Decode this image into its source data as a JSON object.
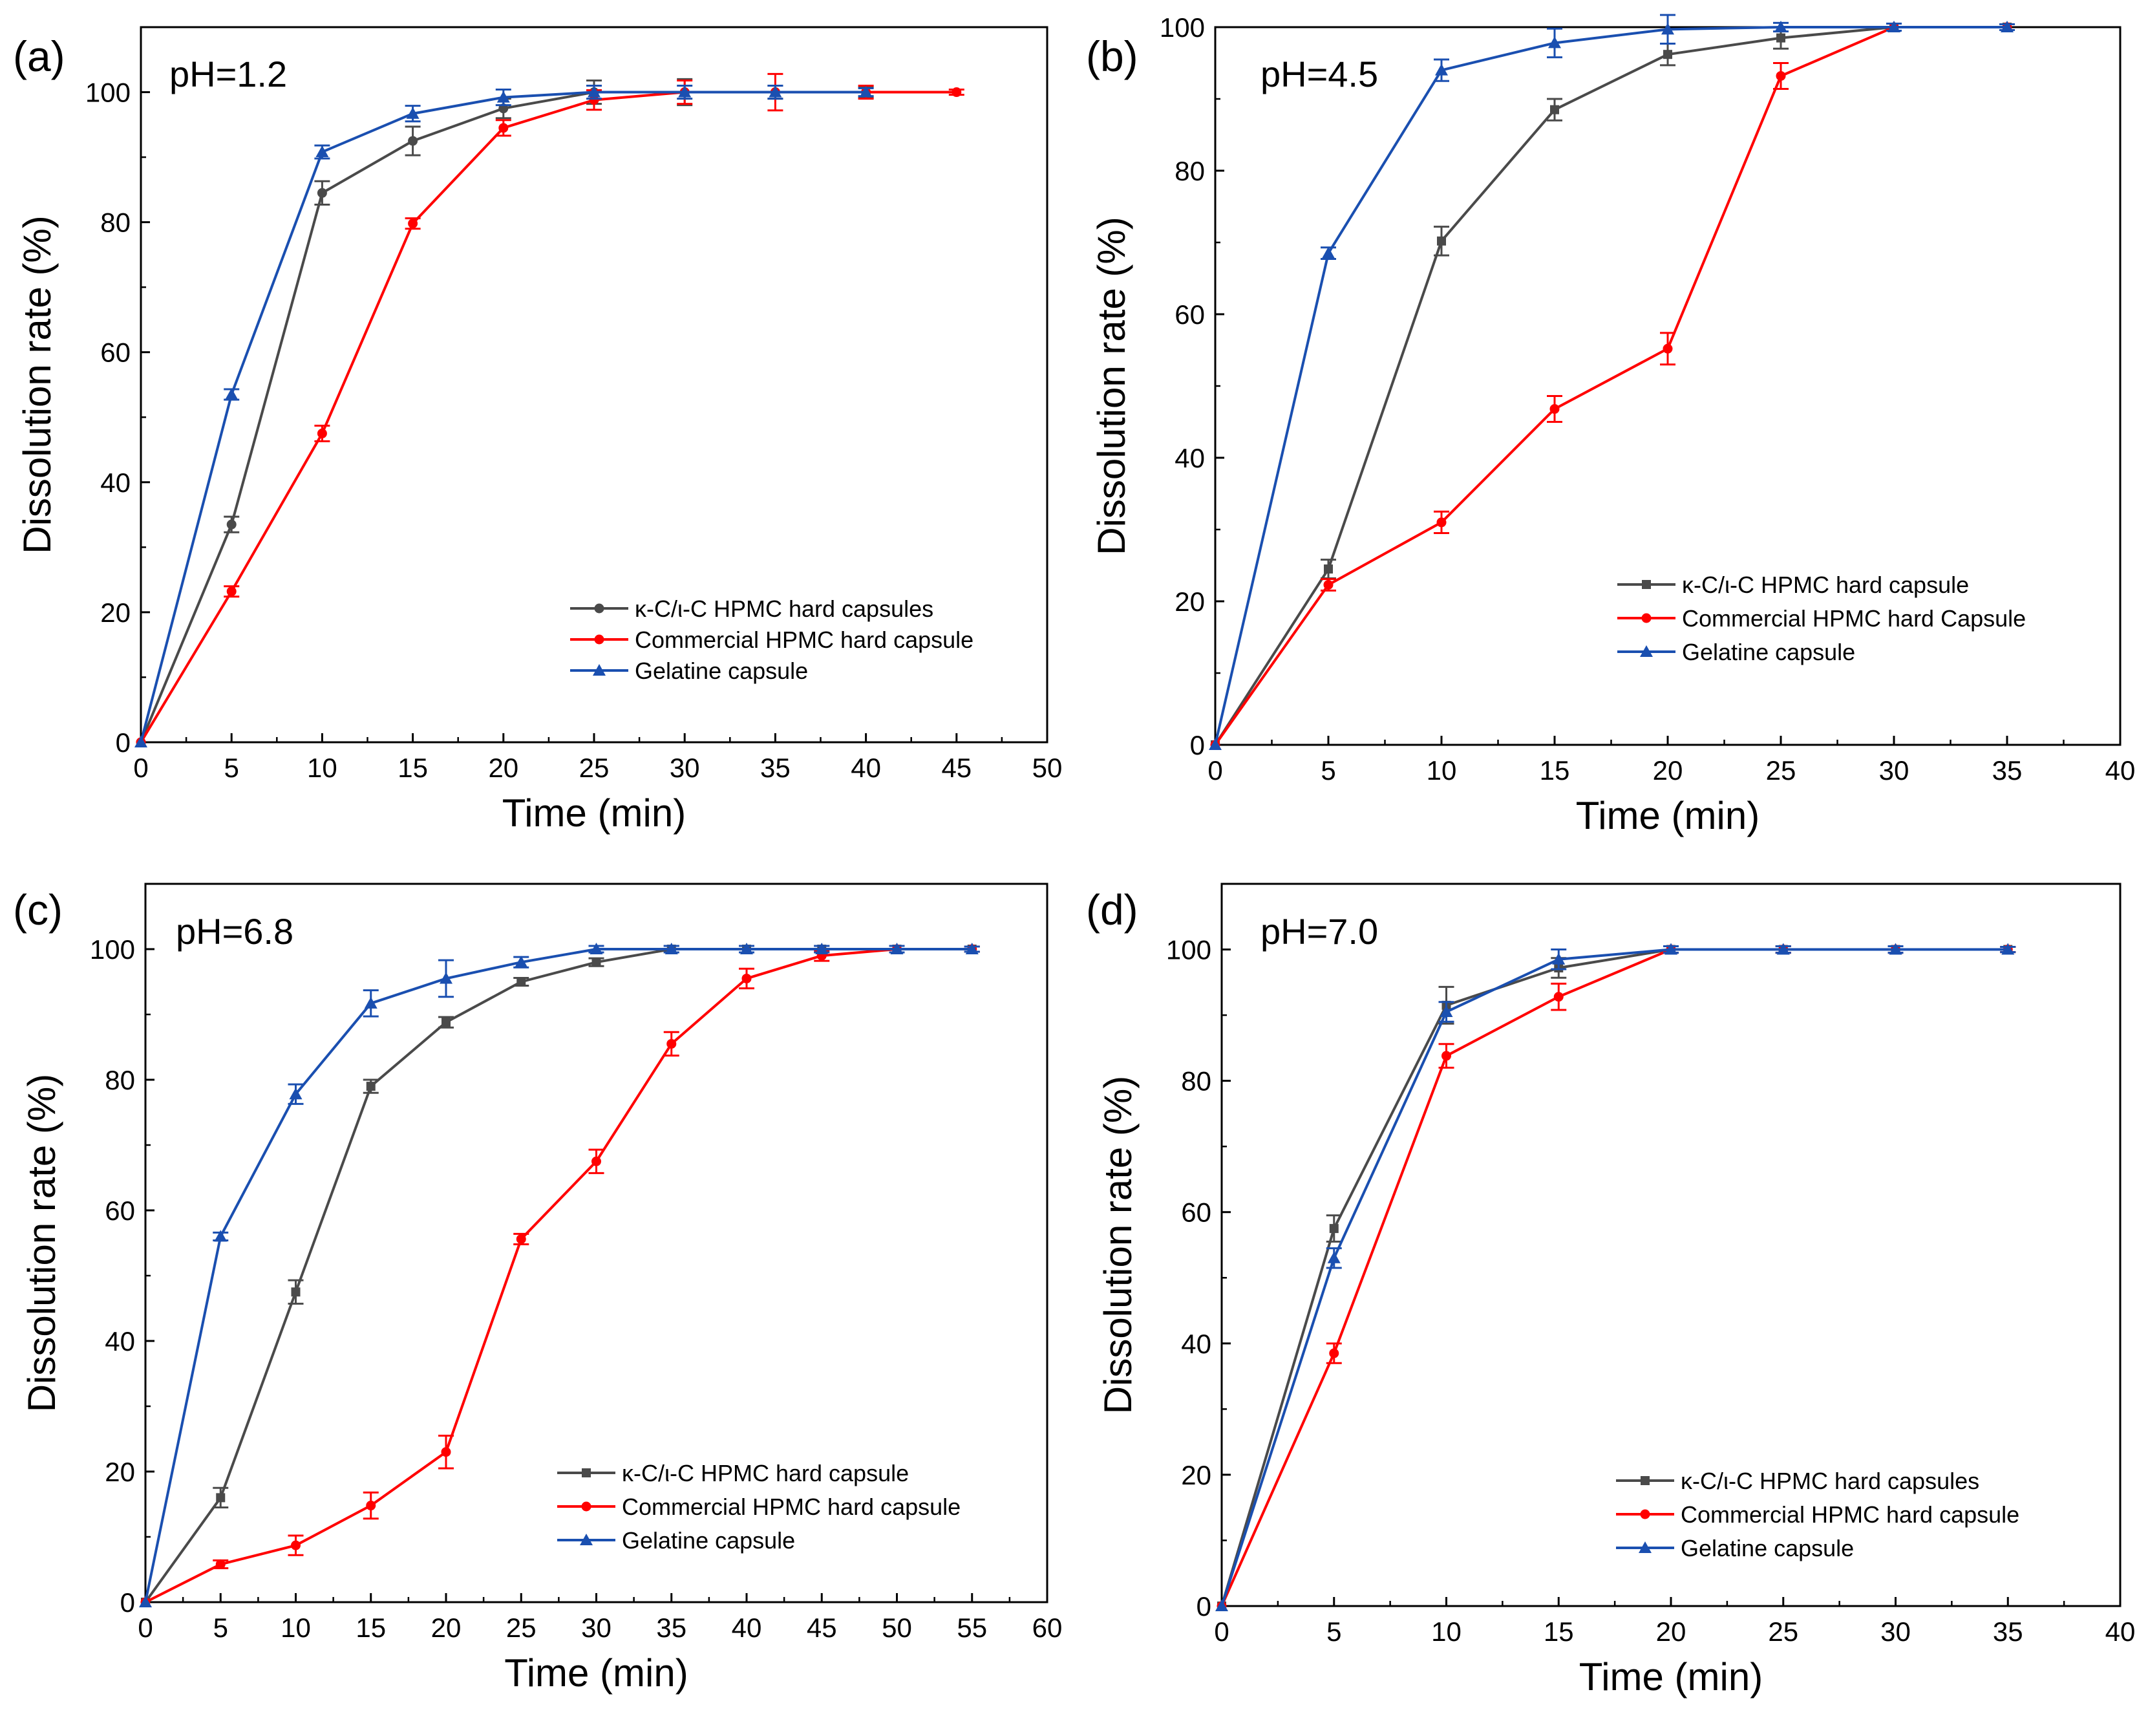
{
  "colors": {
    "kappa": "#4a4a4a",
    "commercial": "#ff0000",
    "gelatine": "#1a4fb0",
    "axis": "#000000"
  },
  "chart_data": [
    {
      "type": "line",
      "panel_label": "(a)",
      "title": "pH=1.2",
      "xlabel": "Time (min)",
      "ylabel": "Dissolution rate (%)",
      "xlim": [
        0,
        50
      ],
      "ylim": [
        0,
        110
      ],
      "xticks": [
        0,
        5,
        10,
        15,
        20,
        25,
        30,
        35,
        40,
        45,
        50
      ],
      "yticks": [
        0,
        20,
        40,
        60,
        80,
        100
      ],
      "legend_position": "lower-right",
      "series": [
        {
          "key": "kappa",
          "name": "κ-C/ι-C HPMC hard capsules",
          "marker": "circle",
          "x": [
            0,
            5,
            10,
            15,
            20,
            25,
            30,
            35,
            40
          ],
          "y": [
            0,
            33.5,
            84.5,
            92.5,
            97.5,
            100,
            100,
            100,
            100
          ],
          "err": [
            0,
            1.2,
            1.8,
            2.2,
            1.5,
            1.8,
            2.0,
            1.0,
            0.8
          ]
        },
        {
          "key": "commercial",
          "name": "Commercial HPMC hard capsule",
          "marker": "circle",
          "x": [
            0,
            5,
            10,
            15,
            20,
            25,
            30,
            35,
            40,
            45
          ],
          "y": [
            0,
            23.2,
            47.5,
            79.8,
            94.5,
            98.8,
            100,
            100,
            100,
            100
          ],
          "err": [
            0,
            0.8,
            1.2,
            0.8,
            1.2,
            1.5,
            1.8,
            2.8,
            1.0,
            0.4
          ]
        },
        {
          "key": "gelatine",
          "name": "Gelatine capsule",
          "marker": "triangle",
          "x": [
            0,
            5,
            10,
            15,
            20,
            25,
            30,
            35,
            40
          ],
          "y": [
            0,
            53.5,
            90.8,
            96.7,
            99.2,
            100,
            100,
            100,
            100
          ],
          "err": [
            0,
            0.8,
            1.0,
            1.2,
            1.2,
            1.0,
            1.0,
            1.0,
            0.6
          ]
        }
      ]
    },
    {
      "type": "line",
      "panel_label": "(b)",
      "title": "pH=4.5",
      "xlabel": "Time (min)",
      "ylabel": "Dissolution rate (%)",
      "xlim": [
        0,
        40
      ],
      "ylim": [
        0,
        100
      ],
      "xticks": [
        0,
        5,
        10,
        15,
        20,
        25,
        30,
        35,
        40
      ],
      "yticks": [
        0,
        20,
        40,
        60,
        80,
        100
      ],
      "legend_position": "lower-right",
      "series": [
        {
          "key": "kappa",
          "name": "κ-C/ι-C HPMC hard capsule",
          "marker": "square",
          "x": [
            0,
            5,
            10,
            15,
            20,
            25,
            30,
            35
          ],
          "y": [
            0,
            24.5,
            70.2,
            88.5,
            96.2,
            98.5,
            100,
            100
          ],
          "err": [
            0,
            1.3,
            2.0,
            1.5,
            1.5,
            1.5,
            0.5,
            0.4
          ]
        },
        {
          "key": "commercial",
          "name": "Commercial HPMC hard Capsule",
          "marker": "circle",
          "x": [
            0,
            5,
            10,
            15,
            20,
            25,
            30,
            35
          ],
          "y": [
            0,
            22.3,
            31.0,
            46.8,
            55.2,
            93.2,
            100,
            100
          ],
          "err": [
            0,
            0.8,
            1.5,
            1.8,
            2.2,
            1.8,
            0.5,
            0.4
          ]
        },
        {
          "key": "gelatine",
          "name": "Gelatine capsule",
          "marker": "triangle",
          "x": [
            0,
            5,
            10,
            15,
            20,
            25,
            30,
            35
          ],
          "y": [
            0,
            68.5,
            94.0,
            97.8,
            99.7,
            100,
            100,
            100
          ],
          "err": [
            0,
            0.8,
            1.5,
            2.0,
            2.0,
            0.6,
            0.5,
            0.4
          ]
        }
      ]
    },
    {
      "type": "line",
      "panel_label": "(c)",
      "title": "pH=6.8",
      "xlabel": "Time (min)",
      "ylabel": "Dissolution rate (%)",
      "xlim": [
        0,
        60
      ],
      "ylim": [
        0,
        110
      ],
      "xticks": [
        0,
        5,
        10,
        15,
        20,
        25,
        30,
        35,
        40,
        45,
        50,
        55,
        60
      ],
      "yticks": [
        0,
        20,
        40,
        60,
        80,
        100
      ],
      "legend_position": "lower-right",
      "series": [
        {
          "key": "kappa",
          "name": "κ-C/ι-C HPMC hard capsule",
          "marker": "square",
          "x": [
            0,
            5,
            10,
            15,
            20,
            25,
            30,
            35,
            40,
            45,
            50,
            55
          ],
          "y": [
            0,
            16.0,
            47.5,
            79.0,
            88.8,
            95.0,
            98.0,
            100,
            100,
            100,
            100,
            100
          ],
          "err": [
            0,
            1.5,
            1.8,
            1.0,
            0.8,
            0.6,
            0.6,
            0.5,
            0.5,
            0.5,
            0.5,
            0.4
          ]
        },
        {
          "key": "commercial",
          "name": "Commercial HPMC hard capsule",
          "marker": "circle",
          "x": [
            0,
            5,
            10,
            15,
            20,
            25,
            30,
            35,
            40,
            45,
            50,
            55
          ],
          "y": [
            0,
            5.8,
            8.7,
            14.8,
            23.0,
            55.6,
            67.5,
            85.5,
            95.5,
            99.0,
            100,
            100
          ],
          "err": [
            0,
            0.6,
            1.5,
            2.0,
            2.5,
            0.8,
            1.8,
            1.8,
            1.5,
            0.8,
            0.5,
            0.4
          ]
        },
        {
          "key": "gelatine",
          "name": "Gelatine capsule",
          "marker": "triangle",
          "x": [
            0,
            5,
            10,
            15,
            20,
            25,
            30,
            35,
            40,
            45,
            50,
            55
          ],
          "y": [
            0,
            56.0,
            77.8,
            91.7,
            95.5,
            98.0,
            100,
            100,
            100,
            100,
            100,
            100
          ],
          "err": [
            0,
            0.6,
            1.5,
            2.0,
            2.8,
            0.8,
            0.5,
            0.5,
            0.5,
            0.5,
            0.5,
            0.4
          ]
        }
      ]
    },
    {
      "type": "line",
      "panel_label": "(d)",
      "title": "pH=7.0",
      "xlabel": "Time (min)",
      "ylabel": "Dissolution rate (%)",
      "xlim": [
        0,
        40
      ],
      "ylim": [
        0,
        110
      ],
      "xticks": [
        0,
        5,
        10,
        15,
        20,
        25,
        30,
        35,
        40
      ],
      "yticks": [
        0,
        20,
        40,
        60,
        80,
        100
      ],
      "legend_position": "lower-right",
      "series": [
        {
          "key": "kappa",
          "name": "κ-C/ι-C HPMC hard capsules",
          "marker": "square",
          "x": [
            0,
            5,
            10,
            15,
            20,
            25,
            30,
            35
          ],
          "y": [
            0,
            57.5,
            91.5,
            97.2,
            100,
            100,
            100,
            100
          ],
          "err": [
            0,
            2.0,
            2.8,
            1.5,
            0.5,
            0.5,
            0.5,
            0.4
          ]
        },
        {
          "key": "commercial",
          "name": "Commercial HPMC hard capsule",
          "marker": "circle",
          "x": [
            0,
            5,
            10,
            15,
            20,
            25,
            30,
            35
          ],
          "y": [
            0,
            38.5,
            83.8,
            92.8,
            100,
            100,
            100,
            100
          ],
          "err": [
            0,
            1.5,
            1.8,
            2.0,
            0.5,
            0.5,
            0.5,
            0.4
          ]
        },
        {
          "key": "gelatine",
          "name": "Gelatine capsule",
          "marker": "triangle",
          "x": [
            0,
            5,
            10,
            15,
            20,
            25,
            30,
            35
          ],
          "y": [
            0,
            53.0,
            90.5,
            98.5,
            100,
            100,
            100,
            100
          ],
          "err": [
            0,
            1.5,
            1.5,
            1.5,
            0.5,
            0.5,
            0.5,
            0.4
          ]
        }
      ]
    }
  ]
}
